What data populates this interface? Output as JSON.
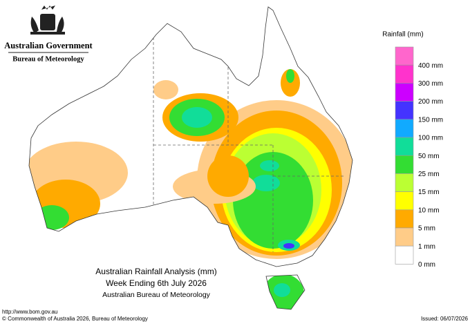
{
  "header": {
    "government": "Australian Government",
    "agency": "Bureau of Meteorology"
  },
  "legend": {
    "title": "Rainfall (mm)",
    "top_color": "#ff66cc",
    "items": [
      {
        "label": "400 mm",
        "color": "#ff33cc"
      },
      {
        "label": "300 mm",
        "color": "#cc00ff"
      },
      {
        "label": "200 mm",
        "color": "#4433ff"
      },
      {
        "label": "150 mm",
        "color": "#11aaff"
      },
      {
        "label": "100 mm",
        "color": "#11dd99"
      },
      {
        "label": "50 mm",
        "color": "#33dd33"
      },
      {
        "label": "25 mm",
        "color": "#bbff33"
      },
      {
        "label": "15 mm",
        "color": "#ffff00"
      },
      {
        "label": "10 mm",
        "color": "#ffaa00"
      },
      {
        "label": "5 mm",
        "color": "#ffcc88"
      },
      {
        "label": "1 mm",
        "color": "#ffffff"
      },
      {
        "label": "0 mm",
        "color": null
      }
    ]
  },
  "map_title": {
    "line1": "Australian Rainfall Analysis (mm)",
    "line2": "Week Ending 6th July 2026",
    "line3": "Australian Bureau of Meteorology"
  },
  "footer": {
    "url": "http://www.bom.gov.au",
    "copyright": "© Commonwealth of Australia 2026, Bureau of Meteorology",
    "issued": "Issued: 06/07/2026"
  }
}
